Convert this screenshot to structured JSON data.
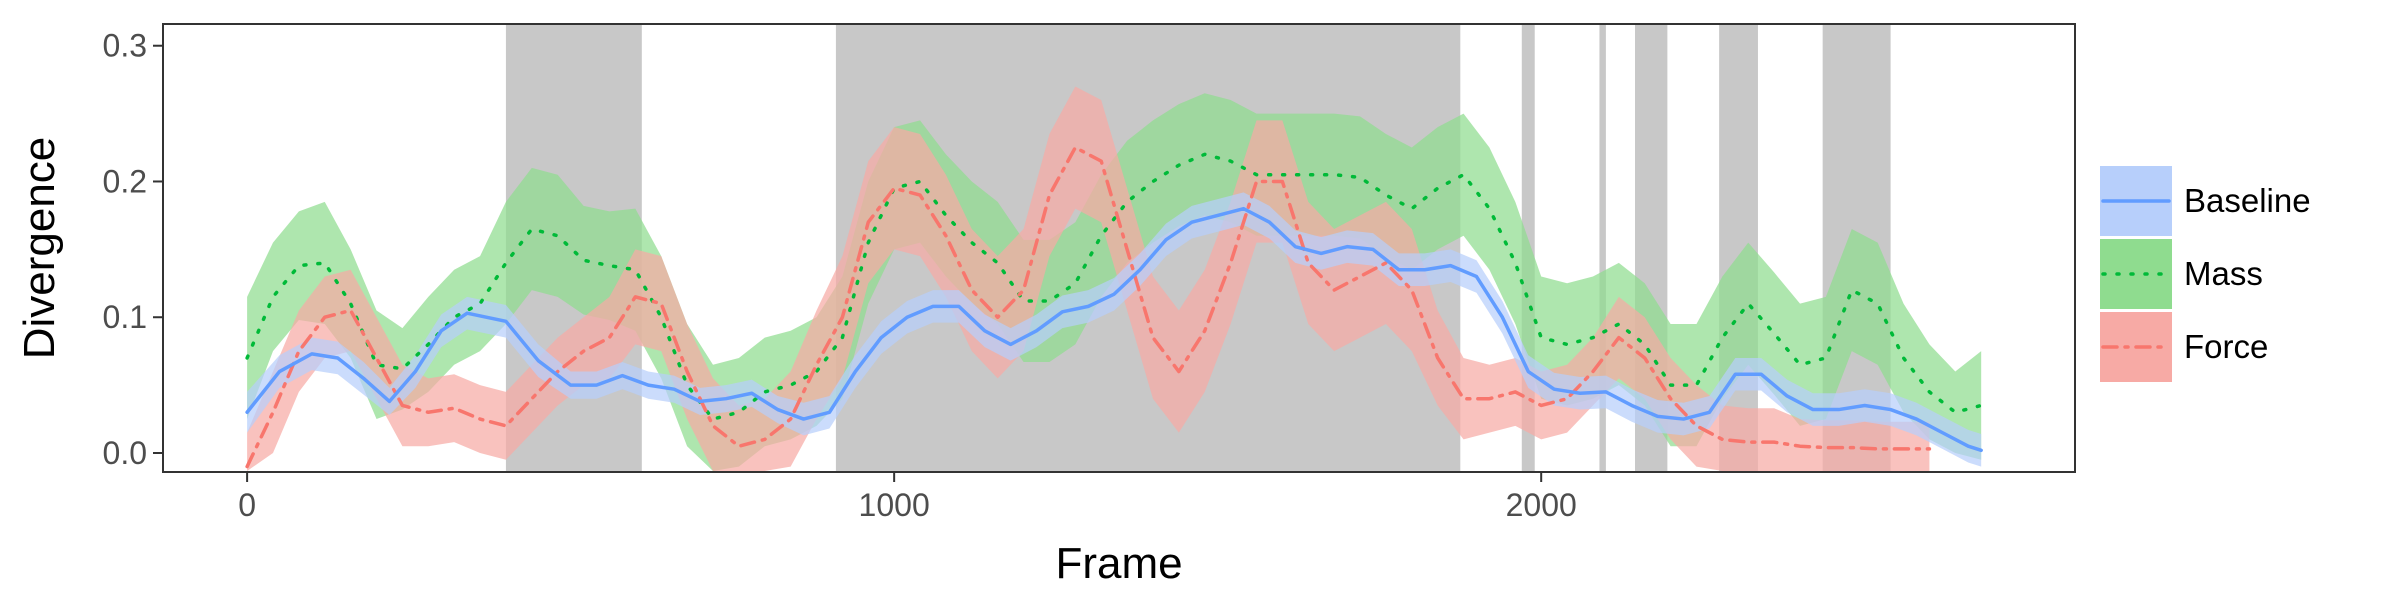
{
  "chart_data": {
    "type": "line",
    "title": "",
    "xlabel": "Frame",
    "ylabel": "Divergence",
    "xlim": [
      -130,
      2825
    ],
    "ylim": [
      -0.014,
      0.316
    ],
    "x_ticks": [
      0,
      1000,
      2000
    ],
    "x_tick_labels": [
      "0",
      "1000",
      "2000"
    ],
    "y_ticks": [
      0.0,
      0.1,
      0.2,
      0.3
    ],
    "y_tick_labels": [
      "0.0",
      "0.1",
      "0.2",
      "0.3"
    ],
    "grid": false,
    "legend_position": "right",
    "shaded_regions": [
      [
        400,
        610
      ],
      [
        910,
        1875
      ],
      [
        1970,
        1990
      ],
      [
        2090,
        2100
      ],
      [
        2145,
        2195
      ],
      [
        2275,
        2335
      ],
      [
        2435,
        2540
      ]
    ],
    "shade_color": "#c8c8c8",
    "series": [
      {
        "name": "Baseline",
        "color": "#619cff",
        "band_color": "#b7cffb",
        "line_style": "solid",
        "points": [
          [
            0,
            0.03,
            0.015
          ],
          [
            50,
            0.06,
            0.012
          ],
          [
            100,
            0.073,
            0.012
          ],
          [
            140,
            0.07,
            0.012
          ],
          [
            180,
            0.055,
            0.012
          ],
          [
            220,
            0.038,
            0.01
          ],
          [
            260,
            0.06,
            0.012
          ],
          [
            300,
            0.09,
            0.012
          ],
          [
            340,
            0.103,
            0.012
          ],
          [
            400,
            0.097,
            0.012
          ],
          [
            450,
            0.068,
            0.012
          ],
          [
            500,
            0.05,
            0.01
          ],
          [
            540,
            0.05,
            0.01
          ],
          [
            580,
            0.057,
            0.01
          ],
          [
            620,
            0.05,
            0.01
          ],
          [
            660,
            0.047,
            0.01
          ],
          [
            700,
            0.038,
            0.01
          ],
          [
            740,
            0.04,
            0.01
          ],
          [
            780,
            0.044,
            0.01
          ],
          [
            820,
            0.032,
            0.01
          ],
          [
            860,
            0.025,
            0.012
          ],
          [
            900,
            0.03,
            0.012
          ],
          [
            940,
            0.06,
            0.012
          ],
          [
            980,
            0.085,
            0.012
          ],
          [
            1020,
            0.1,
            0.012
          ],
          [
            1060,
            0.108,
            0.012
          ],
          [
            1100,
            0.108,
            0.012
          ],
          [
            1140,
            0.09,
            0.012
          ],
          [
            1180,
            0.08,
            0.012
          ],
          [
            1220,
            0.09,
            0.012
          ],
          [
            1260,
            0.104,
            0.012
          ],
          [
            1300,
            0.108,
            0.012
          ],
          [
            1340,
            0.117,
            0.012
          ],
          [
            1380,
            0.135,
            0.012
          ],
          [
            1420,
            0.157,
            0.012
          ],
          [
            1460,
            0.17,
            0.012
          ],
          [
            1500,
            0.175,
            0.012
          ],
          [
            1540,
            0.18,
            0.012
          ],
          [
            1580,
            0.17,
            0.012
          ],
          [
            1620,
            0.152,
            0.012
          ],
          [
            1660,
            0.147,
            0.012
          ],
          [
            1700,
            0.152,
            0.012
          ],
          [
            1740,
            0.15,
            0.012
          ],
          [
            1780,
            0.135,
            0.012
          ],
          [
            1820,
            0.135,
            0.012
          ],
          [
            1860,
            0.138,
            0.012
          ],
          [
            1900,
            0.13,
            0.012
          ],
          [
            1940,
            0.1,
            0.012
          ],
          [
            1980,
            0.06,
            0.012
          ],
          [
            2020,
            0.047,
            0.012
          ],
          [
            2060,
            0.044,
            0.012
          ],
          [
            2100,
            0.045,
            0.012
          ],
          [
            2140,
            0.035,
            0.012
          ],
          [
            2180,
            0.027,
            0.012
          ],
          [
            2220,
            0.025,
            0.012
          ],
          [
            2260,
            0.03,
            0.012
          ],
          [
            2300,
            0.058,
            0.012
          ],
          [
            2340,
            0.058,
            0.012
          ],
          [
            2380,
            0.042,
            0.012
          ],
          [
            2420,
            0.032,
            0.012
          ],
          [
            2460,
            0.032,
            0.012
          ],
          [
            2500,
            0.035,
            0.012
          ],
          [
            2540,
            0.032,
            0.012
          ],
          [
            2580,
            0.025,
            0.012
          ],
          [
            2620,
            0.015,
            0.012
          ],
          [
            2660,
            0.005,
            0.012
          ],
          [
            2680,
            0.002,
            0.012
          ]
        ]
      },
      {
        "name": "Mass",
        "color": "#00ba38",
        "band_color": "#8fdc8f",
        "line_style": "dotted",
        "points": [
          [
            0,
            0.07,
            0.045
          ],
          [
            40,
            0.115,
            0.04
          ],
          [
            80,
            0.138,
            0.04
          ],
          [
            120,
            0.14,
            0.045
          ],
          [
            160,
            0.11,
            0.04
          ],
          [
            200,
            0.065,
            0.04
          ],
          [
            240,
            0.062,
            0.03
          ],
          [
            280,
            0.08,
            0.035
          ],
          [
            320,
            0.1,
            0.035
          ],
          [
            360,
            0.11,
            0.035
          ],
          [
            400,
            0.14,
            0.045
          ],
          [
            440,
            0.165,
            0.045
          ],
          [
            480,
            0.16,
            0.045
          ],
          [
            520,
            0.142,
            0.04
          ],
          [
            560,
            0.138,
            0.04
          ],
          [
            600,
            0.135,
            0.045
          ],
          [
            640,
            0.1,
            0.045
          ],
          [
            680,
            0.05,
            0.045
          ],
          [
            720,
            0.025,
            0.04
          ],
          [
            760,
            0.03,
            0.04
          ],
          [
            800,
            0.045,
            0.04
          ],
          [
            840,
            0.05,
            0.04
          ],
          [
            880,
            0.06,
            0.04
          ],
          [
            920,
            0.085,
            0.045
          ],
          [
            960,
            0.155,
            0.045
          ],
          [
            1000,
            0.195,
            0.045
          ],
          [
            1040,
            0.2,
            0.045
          ],
          [
            1080,
            0.175,
            0.045
          ],
          [
            1120,
            0.155,
            0.045
          ],
          [
            1160,
            0.14,
            0.045
          ],
          [
            1200,
            0.112,
            0.045
          ],
          [
            1240,
            0.112,
            0.045
          ],
          [
            1280,
            0.125,
            0.045
          ],
          [
            1320,
            0.16,
            0.045
          ],
          [
            1360,
            0.185,
            0.045
          ],
          [
            1400,
            0.2,
            0.045
          ],
          [
            1440,
            0.212,
            0.045
          ],
          [
            1480,
            0.22,
            0.045
          ],
          [
            1520,
            0.215,
            0.045
          ],
          [
            1560,
            0.205,
            0.045
          ],
          [
            1600,
            0.205,
            0.045
          ],
          [
            1640,
            0.205,
            0.045
          ],
          [
            1680,
            0.205,
            0.045
          ],
          [
            1720,
            0.203,
            0.045
          ],
          [
            1760,
            0.19,
            0.045
          ],
          [
            1800,
            0.18,
            0.045
          ],
          [
            1840,
            0.195,
            0.045
          ],
          [
            1880,
            0.205,
            0.045
          ],
          [
            1920,
            0.18,
            0.045
          ],
          [
            1960,
            0.14,
            0.045
          ],
          [
            2000,
            0.085,
            0.045
          ],
          [
            2040,
            0.08,
            0.045
          ],
          [
            2080,
            0.085,
            0.045
          ],
          [
            2120,
            0.095,
            0.045
          ],
          [
            2160,
            0.08,
            0.045
          ],
          [
            2200,
            0.05,
            0.045
          ],
          [
            2240,
            0.05,
            0.045
          ],
          [
            2280,
            0.085,
            0.045
          ],
          [
            2320,
            0.11,
            0.045
          ],
          [
            2360,
            0.088,
            0.045
          ],
          [
            2400,
            0.065,
            0.045
          ],
          [
            2440,
            0.07,
            0.045
          ],
          [
            2480,
            0.12,
            0.045
          ],
          [
            2520,
            0.11,
            0.045
          ],
          [
            2560,
            0.07,
            0.04
          ],
          [
            2600,
            0.045,
            0.035
          ],
          [
            2640,
            0.03,
            0.03
          ],
          [
            2680,
            0.035,
            0.04
          ]
        ]
      },
      {
        "name": "Force",
        "color": "#f8766d",
        "band_color": "#f7aaa5",
        "line_style": "dashdot",
        "points": [
          [
            0,
            -0.01,
            0.025
          ],
          [
            40,
            0.03,
            0.03
          ],
          [
            80,
            0.075,
            0.03
          ],
          [
            120,
            0.1,
            0.03
          ],
          [
            160,
            0.105,
            0.03
          ],
          [
            200,
            0.07,
            0.03
          ],
          [
            240,
            0.035,
            0.03
          ],
          [
            280,
            0.03,
            0.025
          ],
          [
            320,
            0.033,
            0.025
          ],
          [
            360,
            0.025,
            0.025
          ],
          [
            400,
            0.02,
            0.025
          ],
          [
            440,
            0.04,
            0.025
          ],
          [
            480,
            0.06,
            0.025
          ],
          [
            520,
            0.075,
            0.025
          ],
          [
            560,
            0.085,
            0.03
          ],
          [
            600,
            0.115,
            0.035
          ],
          [
            640,
            0.11,
            0.035
          ],
          [
            680,
            0.06,
            0.035
          ],
          [
            720,
            0.02,
            0.035
          ],
          [
            760,
            0.005,
            0.03
          ],
          [
            800,
            0.01,
            0.03
          ],
          [
            840,
            0.025,
            0.035
          ],
          [
            880,
            0.065,
            0.04
          ],
          [
            920,
            0.1,
            0.045
          ],
          [
            960,
            0.17,
            0.045
          ],
          [
            1000,
            0.195,
            0.045
          ],
          [
            1040,
            0.19,
            0.045
          ],
          [
            1080,
            0.16,
            0.045
          ],
          [
            1120,
            0.12,
            0.045
          ],
          [
            1160,
            0.1,
            0.045
          ],
          [
            1200,
            0.12,
            0.045
          ],
          [
            1240,
            0.19,
            0.045
          ],
          [
            1280,
            0.225,
            0.045
          ],
          [
            1320,
            0.215,
            0.045
          ],
          [
            1360,
            0.15,
            0.045
          ],
          [
            1400,
            0.085,
            0.045
          ],
          [
            1440,
            0.06,
            0.045
          ],
          [
            1480,
            0.09,
            0.045
          ],
          [
            1520,
            0.14,
            0.045
          ],
          [
            1560,
            0.2,
            0.045
          ],
          [
            1600,
            0.2,
            0.045
          ],
          [
            1640,
            0.14,
            0.045
          ],
          [
            1680,
            0.12,
            0.045
          ],
          [
            1720,
            0.13,
            0.045
          ],
          [
            1760,
            0.14,
            0.045
          ],
          [
            1800,
            0.12,
            0.045
          ],
          [
            1840,
            0.07,
            0.035
          ],
          [
            1880,
            0.04,
            0.03
          ],
          [
            1920,
            0.04,
            0.025
          ],
          [
            1960,
            0.045,
            0.025
          ],
          [
            2000,
            0.035,
            0.025
          ],
          [
            2040,
            0.04,
            0.025
          ],
          [
            2080,
            0.06,
            0.025
          ],
          [
            2120,
            0.085,
            0.03
          ],
          [
            2160,
            0.07,
            0.03
          ],
          [
            2200,
            0.04,
            0.03
          ],
          [
            2240,
            0.02,
            0.03
          ],
          [
            2280,
            0.01,
            0.025
          ],
          [
            2320,
            0.008,
            0.025
          ],
          [
            2360,
            0.008,
            0.025
          ],
          [
            2400,
            0.005,
            0.02
          ],
          [
            2440,
            0.004,
            0.02
          ],
          [
            2480,
            0.004,
            0.02
          ],
          [
            2520,
            0.003,
            0.02
          ],
          [
            2560,
            0.003,
            0.02
          ],
          [
            2600,
            0.003,
            0.02
          ]
        ]
      }
    ]
  }
}
